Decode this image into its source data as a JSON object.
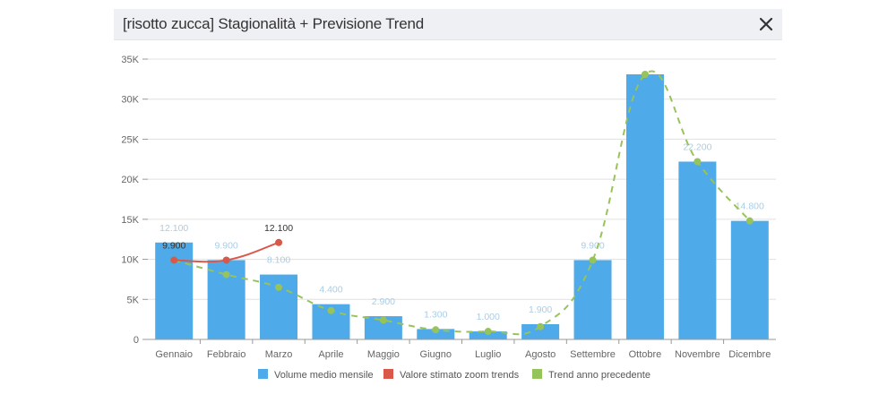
{
  "dialog": {
    "title": "[risotto zucca] Stagionalità + Previsione Trend",
    "close_icon": "close-icon"
  },
  "colors": {
    "bar": "#4eaae8",
    "estimate": "#d9584a",
    "trend": "#97c45a",
    "bar_label": "#a9cde6",
    "grid": "#e0e0e0",
    "axis_text": "#666666"
  },
  "chart_data": {
    "type": "bar",
    "title": "[risotto zucca] Stagionalità + Previsione Trend",
    "xlabel": "",
    "ylabel": "",
    "ylim": [
      0,
      35000
    ],
    "yticks": [
      "0",
      "5K",
      "10K",
      "15K",
      "20K",
      "25K",
      "30K",
      "35K"
    ],
    "grid": true,
    "legend_position": "bottom",
    "categories": [
      "Gennaio",
      "Febbraio",
      "Marzo",
      "Aprile",
      "Maggio",
      "Giugno",
      "Luglio",
      "Agosto",
      "Settembre",
      "Ottobre",
      "Novembre",
      "Dicembre"
    ],
    "series": [
      {
        "name": "Volume medio mensile",
        "type": "bar",
        "values": [
          12100,
          9900,
          8100,
          4400,
          2900,
          1300,
          1000,
          1900,
          9900,
          33100,
          22200,
          14800
        ],
        "labels": [
          "12.100",
          "9.900",
          "8.100",
          "4.400",
          "2.900",
          "1.300",
          "1.000",
          "1.900",
          "9.900",
          "",
          "22.200",
          "14.800"
        ]
      },
      {
        "name": "Valore stimato zoom trends",
        "type": "line",
        "values": [
          9900,
          9900,
          12100,
          null,
          null,
          null,
          null,
          null,
          null,
          null,
          null,
          null
        ],
        "labels": [
          "9.900",
          "",
          "12.100",
          "",
          "",
          "",
          "",
          "",
          "",
          "",
          "",
          ""
        ]
      },
      {
        "name": "Trend anno precedente",
        "type": "line-dashed",
        "values": [
          9900,
          8100,
          6500,
          3600,
          2400,
          1200,
          1000,
          1600,
          9900,
          33100,
          22200,
          14800
        ]
      }
    ]
  },
  "legend": [
    {
      "label": "Volume medio mensile",
      "color": "#4eaae8"
    },
    {
      "label": "Valore stimato zoom trends",
      "color": "#d9584a"
    },
    {
      "label": "Trend anno precedente",
      "color": "#97c45a"
    }
  ]
}
